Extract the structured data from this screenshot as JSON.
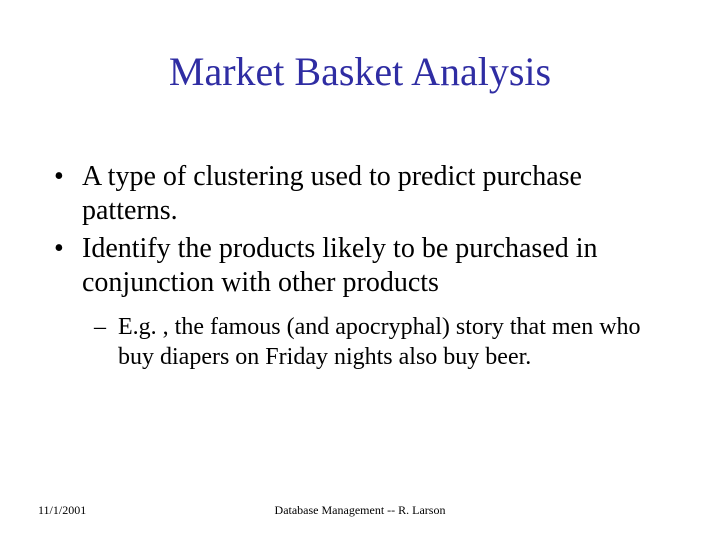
{
  "title": {
    "text": "Market Basket Analysis",
    "color": "#2f2da3",
    "fontsize": 40
  },
  "bullets": {
    "l1_marker": "•",
    "l2_marker": "–",
    "item1": "A type of clustering used to predict purchase patterns.",
    "item2": "Identify the products likely to be purchased in conjunction with other products",
    "sub1": "E.g. , the famous (and apocryphal) story that men who buy diapers on Friday nights also buy beer."
  },
  "footer": {
    "date": "11/1/2001",
    "center": "Database Management -- R. Larson"
  },
  "colors": {
    "background": "#ffffff",
    "body_text": "#000000"
  }
}
